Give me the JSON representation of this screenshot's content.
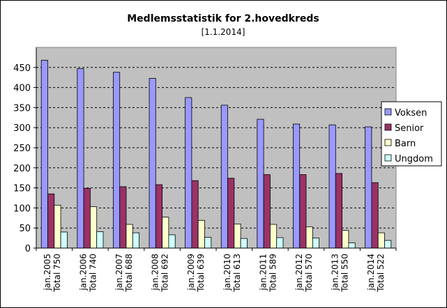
{
  "chart_data": {
    "type": "bar",
    "title": "Medlemsstatistik for 2.hovedkreds",
    "subtitle": "[1.1.2014]",
    "categories": [
      [
        "jan.2005",
        "Total 750"
      ],
      [
        "jan.2006",
        "Total 740"
      ],
      [
        "jan.2007",
        "Total 688"
      ],
      [
        "jan.2008",
        "Total 692"
      ],
      [
        "jan.2009",
        "Total 639"
      ],
      [
        "jan.2010",
        "Total 613"
      ],
      [
        "jan.2011",
        "Total 589"
      ],
      [
        "jan.2012",
        "Total 570"
      ],
      [
        "jan.2013",
        "Total 550"
      ],
      [
        "jan.2014",
        "Total 522"
      ]
    ],
    "series": [
      {
        "name": "Voksen",
        "color": "#9999FF",
        "values": [
          468,
          447,
          438,
          423,
          375,
          356,
          321,
          309,
          307,
          302
        ]
      },
      {
        "name": "Senior",
        "color": "#993366",
        "values": [
          135,
          149,
          153,
          158,
          168,
          174,
          183,
          183,
          186,
          163
        ]
      },
      {
        "name": "Barn",
        "color": "#FFFFCC",
        "values": [
          107,
          103,
          59,
          77,
          69,
          60,
          59,
          53,
          44,
          38
        ]
      },
      {
        "name": "Ungdom",
        "color": "#CCFFFF",
        "values": [
          40,
          41,
          38,
          33,
          27,
          24,
          26,
          25,
          13,
          19
        ]
      }
    ],
    "ylim": [
      0,
      500
    ],
    "yticks": [
      0,
      50,
      100,
      150,
      200,
      250,
      300,
      350,
      400,
      450
    ],
    "grid": true,
    "plot_background": "#C0C0C0",
    "legend_position": "right"
  }
}
